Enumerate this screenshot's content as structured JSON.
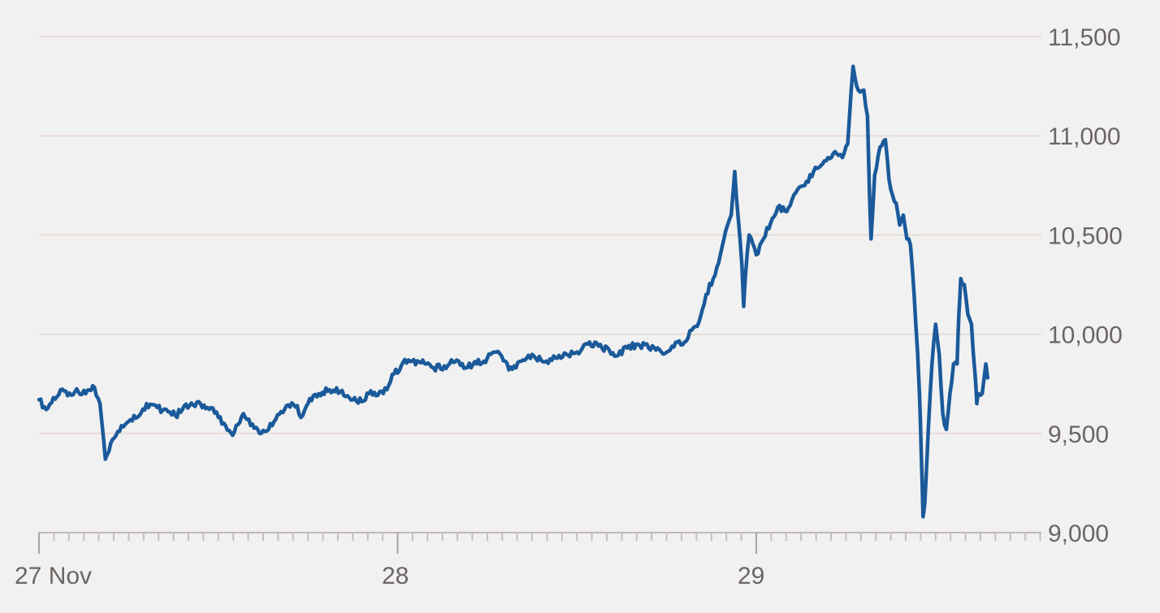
{
  "chart_data": {
    "type": "line",
    "title": "",
    "xlabel": "",
    "ylabel": "",
    "x_tick_labels": [
      "27 Nov",
      "28",
      "29"
    ],
    "y_tick_labels": [
      "11,500",
      "11,000",
      "10,500",
      "10,000",
      "9,500",
      "9,000"
    ],
    "y_ticks": [
      11500,
      11000,
      10500,
      10000,
      9500,
      9000
    ],
    "ylim": [
      9000,
      11500
    ],
    "xlim_days": [
      0,
      2.8
    ],
    "grid": "horizontal",
    "series": [
      {
        "color": "#1b5a9a",
        "points": [
          [
            0.0,
            9670
          ],
          [
            0.02,
            9620
          ],
          [
            0.04,
            9680
          ],
          [
            0.06,
            9720
          ],
          [
            0.08,
            9690
          ],
          [
            0.1,
            9710
          ],
          [
            0.13,
            9700
          ],
          [
            0.15,
            9740
          ],
          [
            0.17,
            9650
          ],
          [
            0.185,
            9370
          ],
          [
            0.2,
            9450
          ],
          [
            0.22,
            9510
          ],
          [
            0.25,
            9560
          ],
          [
            0.28,
            9590
          ],
          [
            0.3,
            9650
          ],
          [
            0.33,
            9630
          ],
          [
            0.36,
            9610
          ],
          [
            0.38,
            9590
          ],
          [
            0.4,
            9620
          ],
          [
            0.42,
            9640
          ],
          [
            0.45,
            9650
          ],
          [
            0.48,
            9630
          ],
          [
            0.5,
            9580
          ],
          [
            0.52,
            9540
          ],
          [
            0.54,
            9490
          ],
          [
            0.55,
            9540
          ],
          [
            0.57,
            9600
          ],
          [
            0.59,
            9540
          ],
          [
            0.61,
            9520
          ],
          [
            0.63,
            9510
          ],
          [
            0.66,
            9570
          ],
          [
            0.69,
            9640
          ],
          [
            0.72,
            9640
          ],
          [
            0.73,
            9580
          ],
          [
            0.75,
            9650
          ],
          [
            0.78,
            9700
          ],
          [
            0.81,
            9720
          ],
          [
            0.84,
            9710
          ],
          [
            0.86,
            9690
          ],
          [
            0.88,
            9680
          ],
          [
            0.9,
            9660
          ],
          [
            0.92,
            9700
          ],
          [
            0.94,
            9690
          ],
          [
            0.97,
            9720
          ],
          [
            0.99,
            9800
          ],
          [
            1.01,
            9840
          ],
          [
            1.03,
            9870
          ],
          [
            1.06,
            9860
          ],
          [
            1.08,
            9850
          ],
          [
            1.1,
            9830
          ],
          [
            1.13,
            9840
          ],
          [
            1.16,
            9860
          ],
          [
            1.19,
            9830
          ],
          [
            1.22,
            9850
          ],
          [
            1.25,
            9880
          ],
          [
            1.27,
            9910
          ],
          [
            1.29,
            9890
          ],
          [
            1.31,
            9820
          ],
          [
            1.33,
            9830
          ],
          [
            1.35,
            9870
          ],
          [
            1.38,
            9890
          ],
          [
            1.41,
            9860
          ],
          [
            1.44,
            9880
          ],
          [
            1.47,
            9900
          ],
          [
            1.5,
            9910
          ],
          [
            1.53,
            9950
          ],
          [
            1.56,
            9940
          ],
          [
            1.59,
            9920
          ],
          [
            1.61,
            9890
          ],
          [
            1.64,
            9930
          ],
          [
            1.67,
            9950
          ],
          [
            1.7,
            9930
          ],
          [
            1.72,
            9920
          ],
          [
            1.74,
            9900
          ],
          [
            1.76,
            9920
          ],
          [
            1.78,
            9960
          ],
          [
            1.8,
            9960
          ],
          [
            1.82,
            10020
          ],
          [
            1.84,
            10060
          ],
          [
            1.86,
            10200
          ],
          [
            1.88,
            10280
          ],
          [
            1.9,
            10400
          ],
          [
            1.92,
            10550
          ],
          [
            1.93,
            10600
          ],
          [
            1.94,
            10820
          ],
          [
            1.95,
            10580
          ],
          [
            1.96,
            10350
          ],
          [
            1.965,
            10140
          ],
          [
            1.97,
            10300
          ],
          [
            1.98,
            10500
          ],
          [
            2.0,
            10400
          ],
          [
            2.02,
            10480
          ],
          [
            2.04,
            10560
          ],
          [
            2.06,
            10640
          ],
          [
            2.08,
            10620
          ],
          [
            2.1,
            10680
          ],
          [
            2.12,
            10740
          ],
          [
            2.14,
            10770
          ],
          [
            2.16,
            10820
          ],
          [
            2.18,
            10850
          ],
          [
            2.2,
            10890
          ],
          [
            2.22,
            10920
          ],
          [
            2.24,
            10890
          ],
          [
            2.255,
            10960
          ],
          [
            2.27,
            11350
          ],
          [
            2.28,
            11250
          ],
          [
            2.29,
            11220
          ],
          [
            2.3,
            11230
          ],
          [
            2.31,
            11100
          ],
          [
            2.315,
            10750
          ],
          [
            2.32,
            10480
          ],
          [
            2.33,
            10800
          ],
          [
            2.34,
            10900
          ],
          [
            2.35,
            10950
          ],
          [
            2.36,
            10980
          ],
          [
            2.37,
            10780
          ],
          [
            2.38,
            10700
          ],
          [
            2.39,
            10660
          ],
          [
            2.4,
            10550
          ],
          [
            2.41,
            10600
          ],
          [
            2.42,
            10480
          ],
          [
            2.43,
            10450
          ],
          [
            2.44,
            10200
          ],
          [
            2.45,
            9900
          ],
          [
            2.455,
            9700
          ],
          [
            2.46,
            9400
          ],
          [
            2.465,
            9080
          ],
          [
            2.47,
            9150
          ],
          [
            2.48,
            9530
          ],
          [
            2.49,
            9850
          ],
          [
            2.5,
            10050
          ],
          [
            2.51,
            9900
          ],
          [
            2.52,
            9600
          ],
          [
            2.53,
            9520
          ],
          [
            2.54,
            9700
          ],
          [
            2.55,
            9850
          ],
          [
            2.56,
            9850
          ],
          [
            2.565,
            10100
          ],
          [
            2.57,
            10280
          ],
          [
            2.58,
            10250
          ],
          [
            2.59,
            10100
          ],
          [
            2.6,
            10050
          ],
          [
            2.61,
            9800
          ],
          [
            2.615,
            9650
          ],
          [
            2.62,
            9700
          ],
          [
            2.63,
            9700
          ],
          [
            2.64,
            9850
          ],
          [
            2.645,
            9780
          ]
        ]
      }
    ]
  }
}
